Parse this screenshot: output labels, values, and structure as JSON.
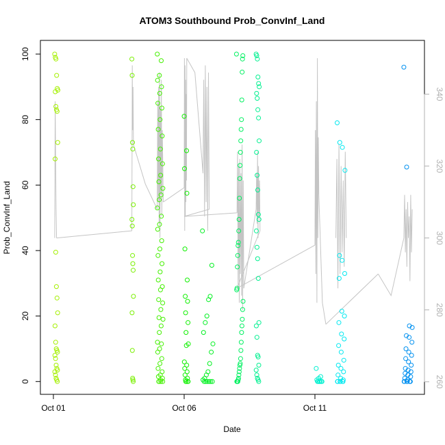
{
  "chart_data": {
    "type": "scatter",
    "title": "ATOM3 Southbound Prob_ConvInf_Land",
    "xlabel": "Date",
    "ylabel": "Prob_ConvInf_Land",
    "xlim": [
      0,
      13.7
    ],
    "ylim": [
      -4,
      104
    ],
    "y_ticks": [
      0,
      20,
      40,
      60,
      80,
      100
    ],
    "x_ticks": [
      {
        "value": 0,
        "label": "Oct 01"
      },
      {
        "value": 5,
        "label": "Oct 06"
      },
      {
        "value": 10,
        "label": "Oct 11"
      }
    ],
    "y2_label": "",
    "y2lim": [
      258,
      352
    ],
    "y2_ticks": [
      260,
      280,
      300,
      320,
      340
    ],
    "colors": {
      "line": "#c4c4c4",
      "box": "#000000",
      "right_axis": "#b0b0b0"
    },
    "clusters": [
      {
        "x": 0.05,
        "width": 0.12,
        "color": "#a4f000",
        "values": [
          100,
          99,
          98.5,
          93.5,
          89.5,
          89,
          88.5,
          84,
          83,
          82.5,
          73,
          68,
          39.5,
          29,
          25.5,
          21,
          17,
          12,
          10,
          9.5,
          9,
          8,
          7,
          5,
          4,
          3.5,
          3,
          2,
          1,
          0.5,
          0
        ]
      },
      {
        "x": 3.0,
        "width": 0.06,
        "color": "#79f000",
        "values": [
          98.5,
          93.5,
          73,
          71,
          59.5,
          54,
          49.5,
          47.5,
          38.5,
          36,
          34,
          26,
          21,
          9.5,
          1,
          0.5,
          0
        ]
      },
      {
        "x": 3.97,
        "width": 0.22,
        "color": "#44f000",
        "values": [
          100,
          98,
          93.5,
          92,
          90,
          88,
          85,
          83.5,
          80,
          77,
          75,
          71,
          68,
          66.5,
          63,
          61,
          59,
          57,
          55.5,
          53,
          50.5,
          48,
          46.5,
          43,
          40.5,
          38.5,
          36,
          33.5,
          31,
          29,
          28,
          25,
          24,
          22,
          19.5,
          19,
          17,
          15,
          12,
          11.5,
          10,
          9,
          7,
          5.5,
          4,
          3,
          2,
          1.5,
          1,
          0.5,
          0,
          0,
          0,
          0
        ]
      },
      {
        "x": 5.0,
        "width": 0.16,
        "color": "#10f000",
        "values": [
          81,
          70.5,
          65,
          57.5,
          40.5,
          31,
          26,
          24.5,
          21,
          18,
          15,
          11.5,
          11,
          6,
          5,
          4,
          3,
          2,
          1,
          0.5,
          0,
          0,
          0,
          0
        ]
      },
      {
        "x": 5.7,
        "width": 0.4,
        "color": "#00f020",
        "values": [
          46,
          35.5,
          26,
          25,
          20,
          18,
          15,
          11.5,
          9,
          5.5,
          3,
          2,
          1,
          0.5,
          0,
          0,
          0,
          0,
          0,
          0
        ]
      },
      {
        "x": 7.0,
        "width": 0.25,
        "color": "#00f060",
        "values": [
          100,
          99.5,
          98.5,
          94.5,
          86,
          80,
          77,
          73.5,
          70,
          66,
          62,
          56,
          49.5,
          46,
          42.5,
          41.5,
          38.5,
          35,
          28.5,
          28,
          24.5,
          22,
          19,
          17,
          15,
          12,
          9.5,
          7,
          5.5,
          5,
          4,
          3,
          2,
          1,
          0.5,
          0,
          0,
          0,
          0
        ]
      },
      {
        "x": 7.75,
        "width": 0.12,
        "color": "#00f090",
        "values": [
          100,
          99.5,
          98.5,
          93,
          91,
          90,
          88,
          86.5,
          83,
          80.5,
          73.5,
          70,
          63,
          58.5,
          51,
          49.5,
          46,
          41,
          37.5,
          31.5,
          18,
          17,
          13.5,
          8,
          7.5,
          5,
          3.5,
          2,
          1,
          0.5,
          0
        ]
      },
      {
        "x": 10.05,
        "width": 0.22,
        "color": "#00f0d0",
        "values": [
          4,
          1.5,
          1,
          0.5,
          0,
          0,
          0,
          0,
          0,
          0
        ]
      },
      {
        "x": 10.85,
        "width": 0.3,
        "color": "#00e8f0",
        "values": [
          79,
          73,
          71.5,
          64.5,
          38.5,
          37,
          33,
          31.5,
          21.5,
          20,
          18,
          14.5,
          13,
          11,
          9,
          6.5,
          5,
          4,
          3,
          2,
          1,
          0.5,
          0,
          0,
          0,
          0,
          0,
          0
        ]
      },
      {
        "x": 13.4,
        "width": 0.32,
        "color": "#0090f0",
        "values": [
          96,
          65.5,
          17,
          16.5,
          14,
          13.5,
          12,
          10,
          9,
          8,
          7,
          6,
          5,
          4,
          3.5,
          3,
          2.5,
          2,
          1.5,
          1,
          0.5,
          0,
          0,
          0,
          0,
          0,
          0,
          0
        ]
      }
    ],
    "line_segments": [
      {
        "x0": 0.05,
        "x1": 0.12,
        "y2": [
          300,
          338,
          322,
          308,
          300
        ]
      },
      {
        "x0": 0.12,
        "x1": 3.0,
        "y2": [
          300,
          302
        ]
      },
      {
        "x0": 3.0,
        "x1": 3.06,
        "y2": [
          302,
          348,
          330,
          342,
          326
        ]
      },
      {
        "x0": 3.06,
        "x1": 3.97,
        "y2": [
          326,
          315,
          308
        ]
      },
      {
        "x0": 3.97,
        "x1": 4.2,
        "y2": [
          308,
          338,
          310,
          342,
          304,
          346,
          300,
          336,
          312,
          344,
          306,
          330,
          320,
          310
        ]
      },
      {
        "x0": 4.2,
        "x1": 5.0,
        "y2": [
          310,
          314
        ]
      },
      {
        "x0": 5.0,
        "x1": 5.1,
        "y2": [
          314,
          350,
          302,
          348,
          306,
          344,
          310,
          340,
          316,
          350
        ]
      },
      {
        "x0": 5.1,
        "x1": 5.72,
        "y2": [
          350,
          346,
          318
        ]
      },
      {
        "x0": 5.72,
        "x1": 5.96,
        "y2": [
          318,
          344,
          306,
          348,
          310,
          342,
          302,
          346,
          308
        ]
      },
      {
        "x0": 5.96,
        "x1": 5.0,
        "y2": [
          308,
          306
        ]
      },
      {
        "x0": 5.0,
        "x1": 7.02,
        "y2": [
          306,
          307
        ]
      },
      {
        "x0": 7.02,
        "x1": 7.28,
        "y2": [
          307,
          324,
          286,
          320,
          282,
          322,
          290,
          318,
          284,
          326,
          280,
          316,
          286
        ]
      },
      {
        "x0": 7.28,
        "x1": 7.75,
        "y2": [
          286,
          308
        ]
      },
      {
        "x0": 7.75,
        "x1": 7.9,
        "y2": [
          308,
          318,
          304,
          324,
          300,
          320,
          306,
          316,
          302
        ]
      },
      {
        "x0": 7.9,
        "x1": 7.02,
        "y2": [
          302,
          286
        ]
      },
      {
        "x0": 7.02,
        "x1": 10.0,
        "y2": [
          286,
          298
        ]
      },
      {
        "x0": 10.0,
        "x1": 10.15,
        "y2": [
          298,
          330,
          290,
          338,
          282,
          350,
          300,
          328,
          312
        ]
      },
      {
        "x0": 10.15,
        "x1": 10.42,
        "y2": [
          312,
          282,
          276
        ]
      },
      {
        "x0": 10.42,
        "x1": 12.42,
        "y2": [
          276,
          290
        ]
      },
      {
        "x0": 12.42,
        "x1": 13.4,
        "y2": [
          290,
          284,
          300
        ]
      },
      {
        "x0": 10.8,
        "x1": 11.2,
        "y2": [
          300,
          322,
          286,
          326,
          290,
          320,
          296,
          316,
          292,
          324,
          300
        ]
      },
      {
        "x0": 13.4,
        "x1": 13.72,
        "y2": [
          300,
          312,
          296,
          308,
          292,
          310,
          300,
          306,
          288,
          312,
          296,
          308
        ]
      }
    ]
  }
}
